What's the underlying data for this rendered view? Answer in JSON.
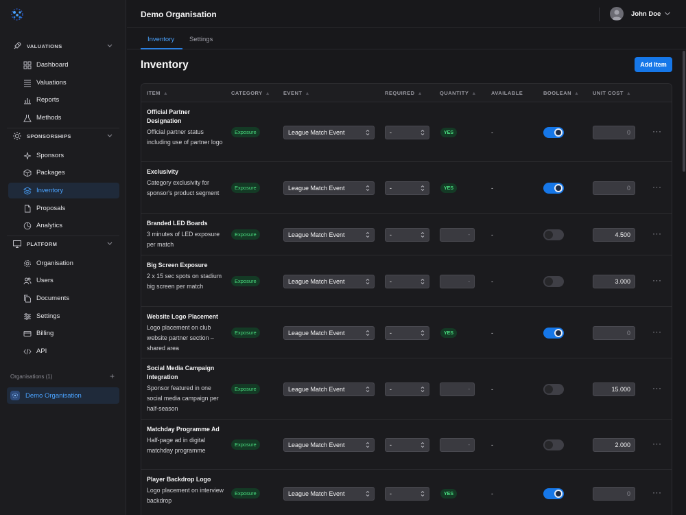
{
  "topbar": {
    "org_name": "Demo Organisation",
    "user_name": "John Doe"
  },
  "sidebar": {
    "sections": [
      {
        "label": "VALUATIONS",
        "items": [
          "Dashboard",
          "Valuations",
          "Reports",
          "Methods"
        ]
      },
      {
        "label": "SPONSORSHIPS",
        "items": [
          "Sponsors",
          "Packages",
          "Inventory",
          "Proposals",
          "Analytics"
        ]
      },
      {
        "label": "PLATFORM",
        "items": [
          "Organisation",
          "Users",
          "Documents",
          "Settings",
          "Billing",
          "API"
        ]
      }
    ],
    "active_item": "Inventory",
    "organisations_label": "Organisations (1)",
    "organisation": "Demo Organisation"
  },
  "tabs": [
    "Inventory",
    "Settings"
  ],
  "page": {
    "title": "Inventory",
    "add_button": "Add Item"
  },
  "table": {
    "headers": [
      "ITEM",
      "CATEGORY",
      "EVENT",
      "REQUIRED",
      "QUANTITY",
      "AVAILABLE",
      "BOOLEAN",
      "UNIT COST"
    ],
    "rows": [
      {
        "title": "Official Partner Designation",
        "desc": "Official partner status including use of partner logo",
        "category": "Exposure",
        "event": "League Match Event",
        "required": "-",
        "quantity_yes": "YES",
        "quantity": "",
        "available": "-",
        "boolean": true,
        "unit_cost": "0"
      },
      {
        "title": "Exclusivity",
        "desc": "Category exclusivity for sponsor's product segment",
        "category": "Exposure",
        "event": "League Match Event",
        "required": "-",
        "quantity_yes": "YES",
        "quantity": "",
        "available": "-",
        "boolean": true,
        "unit_cost": "0"
      },
      {
        "title": "Branded LED Boards",
        "desc": "3 minutes of LED exposure per match",
        "category": "Exposure",
        "event": "League Match Event",
        "required": "-",
        "quantity_yes": "",
        "quantity": "-",
        "available": "-",
        "boolean": false,
        "unit_cost": "4.500"
      },
      {
        "title": "Big Screen Exposure",
        "desc": "2 x 15 sec spots on stadium big screen per match",
        "category": "Exposure",
        "event": "League Match Event",
        "required": "-",
        "quantity_yes": "",
        "quantity": "-",
        "available": "-",
        "boolean": false,
        "unit_cost": "3.000"
      },
      {
        "title": "Website Logo Placement",
        "desc": "Logo placement on club website partner section – shared area",
        "category": "Exposure",
        "event": "League Match Event",
        "required": "-",
        "quantity_yes": "YES",
        "quantity": "",
        "available": "-",
        "boolean": true,
        "unit_cost": "0"
      },
      {
        "title": "Social Media Campaign Integration",
        "desc": "Sponsor featured in one social media campaign per half-season",
        "category": "Exposure",
        "event": "League Match Event",
        "required": "-",
        "quantity_yes": "",
        "quantity": "-",
        "available": "-",
        "boolean": false,
        "unit_cost": "15.000"
      },
      {
        "title": "Matchday Programme Ad",
        "desc": "Half-page ad in digital matchday programme",
        "category": "Exposure",
        "event": "League Match Event",
        "required": "-",
        "quantity_yes": "",
        "quantity": "-",
        "available": "-",
        "boolean": false,
        "unit_cost": "2.000"
      },
      {
        "title": "Player Backdrop Logo",
        "desc": "Logo placement on interview backdrop",
        "category": "Exposure",
        "event": "League Match Event",
        "required": "-",
        "quantity_yes": "YES",
        "quantity": "",
        "available": "-",
        "boolean": true,
        "unit_cost": "0"
      }
    ]
  }
}
